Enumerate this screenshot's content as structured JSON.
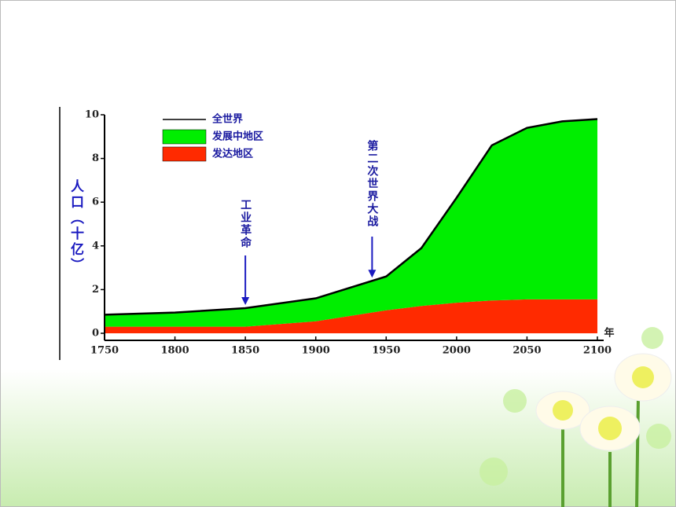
{
  "chart_data": {
    "type": "area",
    "stacked": true,
    "x": [
      1750,
      1800,
      1850,
      1900,
      1950,
      1975,
      2000,
      2025,
      2050,
      2075,
      2100
    ],
    "series": [
      {
        "name": "发达地区",
        "color": "#ff2a00",
        "values": [
          0.3,
          0.3,
          0.3,
          0.55,
          1.05,
          1.25,
          1.4,
          1.5,
          1.55,
          1.55,
          1.55
        ]
      },
      {
        "name": "发展中地区",
        "color": "#00ee00",
        "values": [
          0.55,
          0.65,
          0.85,
          1.05,
          1.55,
          2.65,
          4.8,
          7.1,
          7.85,
          8.15,
          8.25
        ]
      },
      {
        "name": "全世界",
        "color": "#000000",
        "type": "line",
        "values": [
          0.85,
          0.95,
          1.15,
          1.6,
          2.6,
          3.9,
          6.2,
          8.6,
          9.4,
          9.7,
          9.8
        ]
      }
    ],
    "xlim": [
      1750,
      2100
    ],
    "ylim": [
      0,
      10
    ],
    "xticks": [
      1750,
      1800,
      1850,
      1900,
      1950,
      2000,
      2050,
      2100
    ],
    "yticks": [
      0,
      2,
      4,
      6,
      8,
      10
    ],
    "y_label": "人口（十亿）",
    "x_unit": "年",
    "annotations": [
      {
        "text": "工业革命",
        "x": 1850
      },
      {
        "text": "第二次世界大战",
        "x": 1940
      }
    ]
  }
}
